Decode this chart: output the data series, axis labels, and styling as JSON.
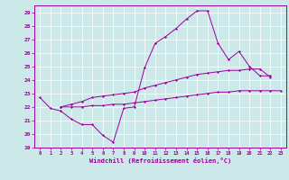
{
  "xlabel": "Windchill (Refroidissement éolien,°C)",
  "bg_color": "#cce8e8",
  "line_color": "#990099",
  "grid_color": "#ffffff",
  "xlim": [
    -0.5,
    23.5
  ],
  "ylim": [
    19,
    29.5
  ],
  "yticks": [
    19,
    20,
    21,
    22,
    23,
    24,
    25,
    26,
    27,
    28,
    29
  ],
  "xticks": [
    0,
    1,
    2,
    3,
    4,
    5,
    6,
    7,
    8,
    9,
    10,
    11,
    12,
    13,
    14,
    15,
    16,
    17,
    18,
    19,
    20,
    21,
    22,
    23
  ],
  "line1_x": [
    0,
    1,
    2,
    3,
    4,
    5,
    6,
    7,
    8,
    9,
    10,
    11,
    12,
    13,
    14,
    15,
    16,
    17,
    18,
    19,
    20,
    21,
    22
  ],
  "line1_y": [
    22.7,
    21.9,
    21.7,
    21.1,
    20.7,
    20.7,
    19.9,
    19.4,
    21.9,
    22.0,
    24.9,
    26.7,
    27.2,
    27.8,
    28.5,
    29.1,
    29.1,
    26.7,
    25.5,
    26.1,
    25.0,
    24.3,
    24.3
  ],
  "line2_x": [
    2,
    3,
    4,
    5,
    6,
    7,
    8,
    9,
    10,
    11,
    12,
    13,
    14,
    15,
    16,
    17,
    18,
    19,
    20,
    21,
    22,
    23
  ],
  "line2_y": [
    22.0,
    22.0,
    22.0,
    22.1,
    22.1,
    22.2,
    22.2,
    22.3,
    22.4,
    22.5,
    22.6,
    22.7,
    22.8,
    22.9,
    23.0,
    23.1,
    23.1,
    23.2,
    23.2,
    23.2,
    23.2,
    23.2
  ],
  "line3_x": [
    2,
    3,
    4,
    5,
    6,
    7,
    8,
    9,
    10,
    11,
    12,
    13,
    14,
    15,
    16,
    17,
    18,
    19,
    20,
    21,
    22
  ],
  "line3_y": [
    22.0,
    22.2,
    22.4,
    22.7,
    22.8,
    22.9,
    23.0,
    23.1,
    23.4,
    23.6,
    23.8,
    24.0,
    24.2,
    24.4,
    24.5,
    24.6,
    24.7,
    24.7,
    24.8,
    24.8,
    24.2
  ]
}
